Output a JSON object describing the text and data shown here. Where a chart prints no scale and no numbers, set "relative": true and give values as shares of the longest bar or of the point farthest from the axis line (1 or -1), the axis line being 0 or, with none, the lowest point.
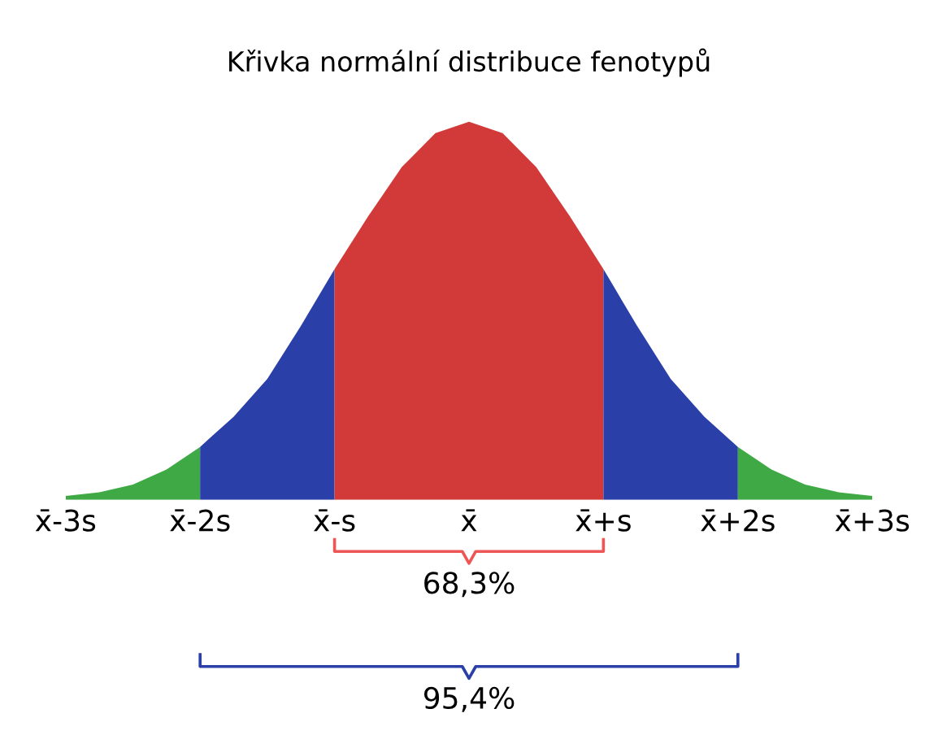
{
  "chart_data": {
    "type": "area",
    "title": "Křivka normální distribuce fenotypů",
    "relative": true,
    "tick_labels": "x",
    "grid": false,
    "xlim": [
      -3,
      3
    ],
    "xticks": [
      {
        "value": -3,
        "label": "x̄-3s"
      },
      {
        "value": -2,
        "label": "x̄-2s"
      },
      {
        "value": -1,
        "label": "x̄-s"
      },
      {
        "value": 0,
        "label": "x̄"
      },
      {
        "value": 1,
        "label": "x̄+s"
      },
      {
        "value": 2,
        "label": "x̄+2s"
      },
      {
        "value": 3,
        "label": "x̄+3s"
      }
    ],
    "series": [
      {
        "color": "#3faa45",
        "x": [
          -3,
          -2.75,
          -2.5,
          -2.25,
          -2
        ],
        "values": [
          0.01,
          0.02,
          0.04,
          0.08,
          0.14
        ]
      },
      {
        "color": "#2a3fa8",
        "x": [
          -2,
          -1.75,
          -1.5,
          -1.25,
          -1
        ],
        "values": [
          0.14,
          0.22,
          0.32,
          0.46,
          0.61
        ]
      },
      {
        "color": "#d23a3a",
        "x": [
          -1,
          -0.75,
          -0.5,
          -0.25,
          0,
          0.25,
          0.5,
          0.75,
          1
        ],
        "values": [
          0.61,
          0.75,
          0.88,
          0.97,
          1,
          0.97,
          0.88,
          0.75,
          0.61
        ]
      },
      {
        "color": "#2a3fa8",
        "x": [
          1,
          1.25,
          1.5,
          1.75,
          2
        ],
        "values": [
          0.61,
          0.46,
          0.32,
          0.22,
          0.14
        ]
      },
      {
        "color": "#3faa45",
        "x": [
          2,
          2.25,
          2.5,
          2.75,
          3
        ],
        "values": [
          0.14,
          0.08,
          0.04,
          0.02,
          0.01
        ]
      }
    ],
    "annotations": [
      "68,3%",
      "95,4%"
    ]
  }
}
